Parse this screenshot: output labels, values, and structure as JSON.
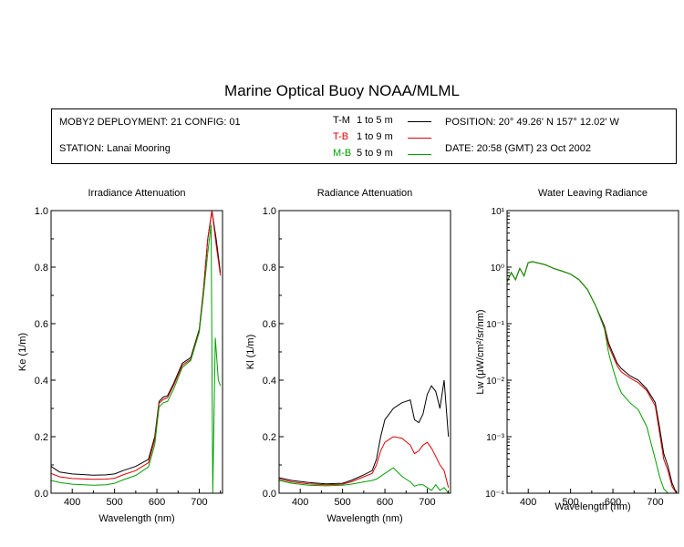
{
  "header": {
    "title": "Marine Optical Buoy NOAA/MLML"
  },
  "info": {
    "deployment": "MOBY2 DEPLOYMENT: 21 CONFIG: 01",
    "station": "STATION: Lanai Mooring",
    "position": "POSITION: 20° 49.26' N   157° 12.02' W",
    "date": "DATE: 20:58 (GMT) 23 Oct 2002",
    "legend": [
      {
        "code": "T-M",
        "range": "1 to 5  m",
        "color": "#000000"
      },
      {
        "code": "T-B",
        "range": "1 to 9  m",
        "color": "#e00000"
      },
      {
        "code": "M-B",
        "range": "5 to 9  m",
        "color": "#00a000"
      }
    ]
  },
  "chart_data": [
    {
      "type": "line",
      "title": "Irradiance Attenuation",
      "xlabel": "Wavelength (nm)",
      "ylabel": "Ke  (1/m)",
      "xlim": [
        350,
        755
      ],
      "ylim": [
        0,
        1.0
      ],
      "xticks": [
        400,
        500,
        600,
        700
      ],
      "yticks": [
        0.0,
        0.2,
        0.4,
        0.6,
        0.8,
        1.0
      ],
      "yticklabels": [
        "0.0",
        "0.2",
        "0.4",
        "0.6",
        "0.8",
        "1.0"
      ],
      "series": [
        {
          "name": "T-M",
          "color": "#000000",
          "x": [
            350,
            370,
            400,
            450,
            480,
            500,
            520,
            550,
            580,
            595,
            605,
            615,
            625,
            640,
            660,
            680,
            700,
            710,
            720,
            730,
            740,
            750
          ],
          "y": [
            0.095,
            0.075,
            0.068,
            0.064,
            0.065,
            0.068,
            0.08,
            0.095,
            0.12,
            0.2,
            0.325,
            0.34,
            0.345,
            0.39,
            0.46,
            0.48,
            0.58,
            0.72,
            0.9,
            1.0,
            0.9,
            0.78
          ]
        },
        {
          "name": "T-B",
          "color": "#e00000",
          "x": [
            350,
            370,
            400,
            450,
            480,
            500,
            520,
            550,
            580,
            595,
            605,
            615,
            625,
            640,
            660,
            680,
            700,
            710,
            720,
            730,
            740,
            750
          ],
          "y": [
            0.07,
            0.058,
            0.052,
            0.049,
            0.05,
            0.053,
            0.065,
            0.08,
            0.108,
            0.19,
            0.318,
            0.332,
            0.338,
            0.383,
            0.453,
            0.474,
            0.575,
            0.715,
            0.9,
            1.0,
            0.88,
            0.77
          ]
        },
        {
          "name": "M-B",
          "color": "#00a000",
          "x": [
            350,
            370,
            400,
            450,
            480,
            500,
            520,
            550,
            580,
            595,
            605,
            615,
            625,
            640,
            660,
            680,
            700,
            710,
            720,
            728,
            732,
            738,
            745,
            750
          ],
          "y": [
            0.045,
            0.038,
            0.032,
            0.028,
            0.03,
            0.035,
            0.047,
            0.063,
            0.093,
            0.172,
            0.305,
            0.32,
            0.325,
            0.37,
            0.445,
            0.47,
            0.57,
            0.7,
            0.85,
            0.95,
            0.0,
            0.55,
            0.4,
            0.38
          ]
        }
      ]
    },
    {
      "type": "line",
      "title": "Radiance Attenuation",
      "xlabel": "Wavelength (nm)",
      "ylabel": "Kl  (1/m)",
      "xlim": [
        350,
        755
      ],
      "ylim": [
        0,
        1.0
      ],
      "xticks": [
        400,
        500,
        600,
        700
      ],
      "yticks": [
        0.0,
        0.2,
        0.4,
        0.6,
        0.8,
        1.0
      ],
      "yticklabels": [
        "0.0",
        "0.2",
        "0.4",
        "0.6",
        "0.8",
        "1.0"
      ],
      "series": [
        {
          "name": "T-M",
          "color": "#000000",
          "x": [
            350,
            380,
            420,
            460,
            500,
            520,
            550,
            570,
            580,
            590,
            600,
            610,
            620,
            640,
            660,
            670,
            680,
            690,
            700,
            710,
            720,
            730,
            740,
            750
          ],
          "y": [
            0.055,
            0.045,
            0.038,
            0.033,
            0.035,
            0.045,
            0.065,
            0.08,
            0.12,
            0.2,
            0.26,
            0.28,
            0.3,
            0.32,
            0.33,
            0.26,
            0.25,
            0.28,
            0.35,
            0.38,
            0.36,
            0.3,
            0.4,
            0.2
          ]
        },
        {
          "name": "T-B",
          "color": "#e00000",
          "x": [
            350,
            380,
            420,
            460,
            500,
            520,
            550,
            570,
            580,
            590,
            600,
            610,
            620,
            640,
            660,
            670,
            680,
            690,
            700,
            710,
            720,
            730,
            740,
            750
          ],
          "y": [
            0.05,
            0.04,
            0.033,
            0.03,
            0.032,
            0.04,
            0.058,
            0.07,
            0.1,
            0.15,
            0.18,
            0.19,
            0.2,
            0.195,
            0.17,
            0.14,
            0.15,
            0.17,
            0.18,
            0.16,
            0.13,
            0.1,
            0.08,
            0.02
          ]
        },
        {
          "name": "M-B",
          "color": "#00a000",
          "x": [
            350,
            380,
            420,
            460,
            500,
            520,
            550,
            570,
            580,
            590,
            600,
            610,
            620,
            640,
            660,
            670,
            680,
            690,
            700,
            710,
            720,
            730,
            740,
            750
          ],
          "y": [
            0.045,
            0.035,
            0.028,
            0.026,
            0.028,
            0.032,
            0.04,
            0.045,
            0.05,
            0.06,
            0.07,
            0.08,
            0.09,
            0.06,
            0.04,
            0.025,
            0.03,
            0.03,
            0.02,
            0.01,
            0.03,
            0.01,
            0.02,
            0.0
          ]
        }
      ]
    },
    {
      "type": "line",
      "title": "Water Leaving Radiance",
      "xlabel": "Wavelength (nm)",
      "ylabel": "Lw  (μW/cm²/sr/nm)",
      "xlim": [
        350,
        755
      ],
      "ylim": [
        0.0001,
        10
      ],
      "yscale": "log",
      "xticks": [
        400,
        500,
        600,
        700
      ],
      "yticks": [
        0.0001,
        0.001,
        0.01,
        0.1,
        1,
        10
      ],
      "yticklabels": [
        "10⁻⁴",
        "10⁻³",
        "10⁻²",
        "10⁻¹",
        "10⁰",
        "10¹"
      ],
      "series": [
        {
          "name": "T-M",
          "color": "#000000",
          "x": [
            350,
            360,
            370,
            380,
            390,
            400,
            410,
            420,
            440,
            460,
            480,
            500,
            520,
            540,
            560,
            580,
            590,
            600,
            610,
            620,
            640,
            660,
            680,
            700,
            710,
            720,
            730,
            740,
            750
          ],
          "y": [
            0.55,
            0.8,
            0.6,
            0.95,
            0.7,
            1.2,
            1.25,
            1.2,
            1.1,
            0.95,
            0.85,
            0.75,
            0.6,
            0.4,
            0.2,
            0.09,
            0.045,
            0.03,
            0.02,
            0.016,
            0.012,
            0.01,
            0.007,
            0.004,
            0.0015,
            0.0005,
            0.0003,
            0.00015,
            0.0001
          ]
        },
        {
          "name": "T-B",
          "color": "#e00000",
          "x": [
            350,
            360,
            370,
            380,
            390,
            400,
            410,
            420,
            440,
            460,
            480,
            500,
            520,
            540,
            560,
            580,
            590,
            600,
            610,
            620,
            640,
            660,
            680,
            700,
            710,
            720,
            730,
            740,
            750
          ],
          "y": [
            0.55,
            0.8,
            0.6,
            0.95,
            0.7,
            1.2,
            1.25,
            1.2,
            1.1,
            0.95,
            0.85,
            0.75,
            0.6,
            0.4,
            0.2,
            0.085,
            0.04,
            0.027,
            0.018,
            0.014,
            0.011,
            0.009,
            0.0065,
            0.0035,
            0.0012,
            0.0004,
            0.00025,
            0.00013,
            0.0001
          ]
        },
        {
          "name": "M-B",
          "color": "#00a000",
          "x": [
            350,
            360,
            370,
            380,
            390,
            400,
            410,
            420,
            440,
            460,
            480,
            500,
            520,
            540,
            560,
            580,
            590,
            600,
            610,
            620,
            640,
            660,
            680,
            700,
            710,
            720,
            730
          ],
          "y": [
            0.55,
            0.8,
            0.6,
            0.95,
            0.7,
            1.2,
            1.25,
            1.2,
            1.1,
            0.95,
            0.85,
            0.75,
            0.6,
            0.4,
            0.2,
            0.08,
            0.03,
            0.016,
            0.009,
            0.006,
            0.004,
            0.003,
            0.0015,
            0.0004,
            0.0002,
            0.00012,
            0.0001
          ]
        }
      ]
    }
  ]
}
